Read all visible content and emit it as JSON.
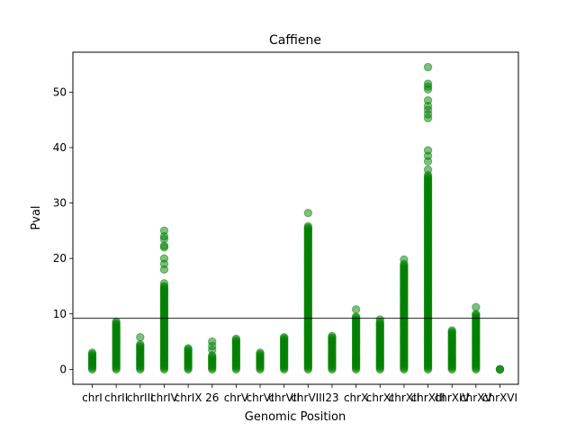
{
  "chart_data": {
    "type": "scatter",
    "title": "Caffiene",
    "xlabel": "Genomic Position",
    "ylabel": "Pval",
    "ylim": [
      -2.7,
      57.2
    ],
    "yticks": [
      0,
      10,
      20,
      30,
      40,
      50
    ],
    "threshold": 9.2,
    "marker_color": "#008000",
    "marker_alpha": 0.5,
    "line_color": "#000000",
    "grid": false,
    "legend": "none",
    "categories": [
      "chrI",
      "chrII",
      "chrIII",
      "chrIV",
      "chrIX",
      "26",
      "chrV",
      "chrVI",
      "chrVII",
      "chrVIII",
      "23",
      "chrX",
      "chrXI",
      "chrXII",
      "chrXIII",
      "chrXIV",
      "chrXV",
      "chrXVI"
    ],
    "columns": [
      {
        "category": "chrI",
        "max": 3.0,
        "outliers": []
      },
      {
        "category": "chrII",
        "max": 8.6,
        "outliers": []
      },
      {
        "category": "chrIII",
        "max": 4.5,
        "outliers": [
          5.8
        ]
      },
      {
        "category": "chrIV",
        "max": 15.0,
        "outliers": [
          15.5,
          18.0,
          19.0,
          20.0,
          22.0,
          22.3,
          23.5,
          24.0,
          25.0
        ]
      },
      {
        "category": "chrIX",
        "max": 3.8,
        "outliers": []
      },
      {
        "category": "26",
        "max": 2.5,
        "outliers": [
          3.5,
          4.2,
          5.0
        ]
      },
      {
        "category": "chrV",
        "max": 5.5,
        "outliers": []
      },
      {
        "category": "chrVI",
        "max": 3.0,
        "outliers": []
      },
      {
        "category": "chrVII",
        "max": 5.8,
        "outliers": []
      },
      {
        "category": "chrVIII",
        "max": 25.8,
        "outliers": [
          28.2
        ]
      },
      {
        "category": "23",
        "max": 6.0,
        "outliers": []
      },
      {
        "category": "chrX",
        "max": 9.5,
        "outliers": [
          10.8
        ]
      },
      {
        "category": "chrXI",
        "max": 8.5,
        "outliers": [
          9.0
        ]
      },
      {
        "category": "chrXII",
        "max": 19.0,
        "outliers": [
          19.8
        ]
      },
      {
        "category": "chrXIII",
        "max": 35.0,
        "outliers": [
          36.0,
          37.5,
          38.5,
          39.5,
          45.3,
          46.0,
          46.8,
          47.5,
          48.5,
          50.5,
          51.0,
          51.5,
          54.5
        ]
      },
      {
        "category": "chrXIV",
        "max": 7.0,
        "outliers": []
      },
      {
        "category": "chrXV",
        "max": 10.0,
        "outliers": [
          11.2
        ]
      },
      {
        "category": "chrXVI",
        "max": 0,
        "outliers": []
      }
    ],
    "tick_labels": [
      "chrI",
      "chrII",
      "chrIII",
      "chrIV",
      "chrIX",
      "26",
      "chrV",
      "chrVI",
      "chrVII",
      "chrVIII",
      "23",
      "chrX",
      "chrXI",
      "chrXII",
      "chrXIII",
      "chrXIV",
      "chrXV",
      "chrXVI"
    ]
  }
}
